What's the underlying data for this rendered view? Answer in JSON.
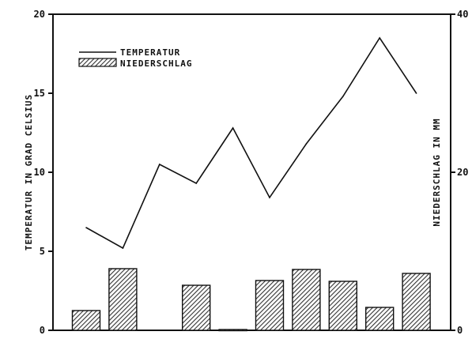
{
  "chart_data": {
    "type": "bar-line-combo",
    "title": "",
    "xlabel": "",
    "ylabel_left": "TEMPERATUR IN GRAD CELSIUS",
    "ylabel_right": "NIEDERSCHLAG IN MM",
    "ylim_left": [
      0,
      20
    ],
    "ylim_right": [
      0,
      40
    ],
    "yticks_left": [
      "0",
      "5",
      "10",
      "15",
      "20"
    ],
    "yticks_right": [
      "0",
      "20",
      "40"
    ],
    "grid": false,
    "legend_position": "top-left",
    "n_points": 10,
    "series": [
      {
        "name": "TEMPERATUR",
        "kind": "line",
        "axis": "left",
        "values": [
          6.5,
          5.2,
          10.5,
          9.3,
          12.8,
          8.4,
          11.8,
          14.8,
          18.5,
          15.0
        ]
      },
      {
        "name": "NIEDERSCHLAG",
        "kind": "bar",
        "axis": "right",
        "values": [
          2.5,
          7.8,
          null,
          5.7,
          0.1,
          6.3,
          7.7,
          6.2,
          2.9,
          7.2
        ]
      }
    ],
    "colors": {
      "line": "#111111",
      "bar_fill_hatch": "#333333",
      "bar_stroke": "#111111"
    }
  }
}
